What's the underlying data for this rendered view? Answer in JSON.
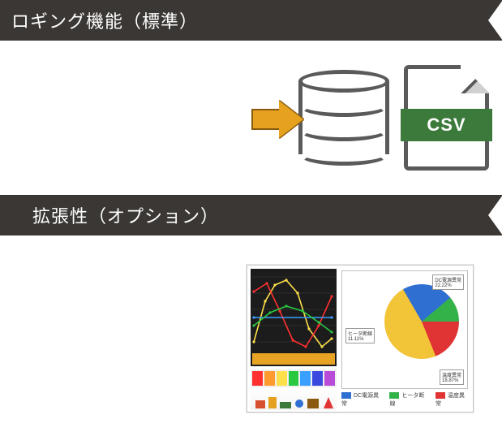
{
  "banner1": {
    "title": "ロギング機能（標準）",
    "bg": "#3a3734",
    "fg": "#ffffff",
    "fontsize": 22
  },
  "banner2": {
    "title": "拡張性（オプション）",
    "bg": "#3a3734",
    "fg": "#ffffff",
    "fontsize": 22
  },
  "csv": {
    "label": "CSV",
    "band_color": "#3b7a3a",
    "text_color": "#ffffff",
    "outline": "#5a5a5a"
  },
  "db": {
    "outline": "#5a5a5a",
    "fill": "#ffffff"
  },
  "arrow": {
    "fill": "#e6a21f",
    "stroke": "#8a5a10"
  },
  "mini": {
    "linechart": {
      "bg": "#1c1c1c",
      "bar_color": "#e8a224",
      "series": [
        {
          "color": "#ffe04a",
          "points": [
            [
              4,
              90
            ],
            [
              18,
              40
            ],
            [
              30,
              20
            ],
            [
              44,
              14
            ],
            [
              58,
              30
            ],
            [
              72,
              74
            ],
            [
              88,
              96
            ],
            [
              100,
              86
            ]
          ]
        },
        {
          "color": "#ff3030",
          "points": [
            [
              4,
              28
            ],
            [
              20,
              18
            ],
            [
              36,
              52
            ],
            [
              52,
              88
            ],
            [
              68,
              96
            ],
            [
              84,
              70
            ],
            [
              100,
              34
            ]
          ]
        },
        {
          "color": "#3aa0ff",
          "points": [
            [
              4,
              60
            ],
            [
              100,
              60
            ]
          ]
        },
        {
          "color": "#28c840",
          "points": [
            [
              4,
              70
            ],
            [
              24,
              54
            ],
            [
              44,
              46
            ],
            [
              64,
              52
            ],
            [
              84,
              66
            ],
            [
              100,
              78
            ]
          ]
        }
      ]
    },
    "palette": [
      "#ff3030",
      "#ff9a2e",
      "#ffe04a",
      "#28c840",
      "#3aa0ff",
      "#3b49df",
      "#b84bd8"
    ],
    "pie": {
      "slices": [
        {
          "label": "DC電源異常",
          "value": 22.22,
          "color": "#2e6fd1"
        },
        {
          "label": "ヒータ断線",
          "value": 11.11,
          "color": "#34b24a"
        },
        {
          "label": "温度異常",
          "value": 18.87,
          "color": "#e03434"
        },
        {
          "label": "その他",
          "value": 47.8,
          "color": "#f2c438"
        }
      ],
      "label_fontsize": 6
    },
    "legend": [
      {
        "swatch": "#2e6fd1",
        "text": "DC電源異常"
      },
      {
        "swatch": "#34b24a",
        "text": "ヒータ断線"
      },
      {
        "swatch": "#e03434",
        "text": "温度異常"
      }
    ]
  }
}
